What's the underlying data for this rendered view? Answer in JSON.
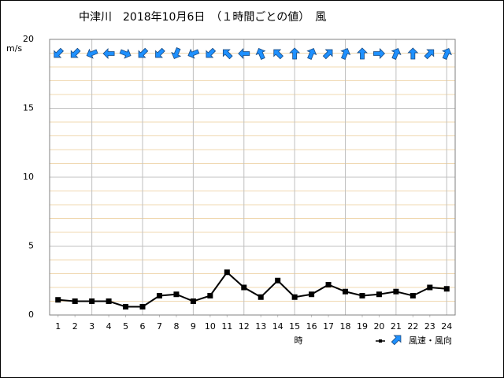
{
  "chart_data": {
    "type": "line",
    "title": "中津川　2018年10月6日　（１時間ごとの値）　風",
    "y_unit": "m/s",
    "x_label": "時",
    "legend_label": "風速・風向",
    "x": [
      1,
      2,
      3,
      4,
      5,
      6,
      7,
      8,
      9,
      10,
      11,
      12,
      13,
      14,
      15,
      16,
      17,
      18,
      19,
      20,
      21,
      22,
      23,
      24
    ],
    "xlim": [
      0.5,
      24.5
    ],
    "xticks": [
      1,
      2,
      3,
      4,
      5,
      6,
      7,
      8,
      9,
      10,
      11,
      12,
      13,
      14,
      15,
      16,
      17,
      18,
      19,
      20,
      21,
      22,
      23,
      24
    ],
    "ylim": [
      0,
      20
    ],
    "yticks": [
      0,
      5,
      10,
      15,
      20
    ],
    "grid": true,
    "series": [
      {
        "name": "風速",
        "color": "#000000",
        "values": [
          1.1,
          1.0,
          1.0,
          1.0,
          0.6,
          0.6,
          1.4,
          1.5,
          1.0,
          1.4,
          3.1,
          2.0,
          1.3,
          2.5,
          1.3,
          1.5,
          2.2,
          1.7,
          1.4,
          1.5,
          1.7,
          1.4,
          2.0,
          1.9
        ]
      },
      {
        "name": "風向",
        "color": "#1e90ff",
        "values": [
          45,
          45,
          67.5,
          90,
          292.5,
          45,
          45,
          22.5,
          67.5,
          45,
          135,
          90,
          157.5,
          135,
          180,
          202.5,
          225,
          202.5,
          180,
          270,
          202.5,
          180,
          225,
          202.5
        ]
      }
    ]
  }
}
